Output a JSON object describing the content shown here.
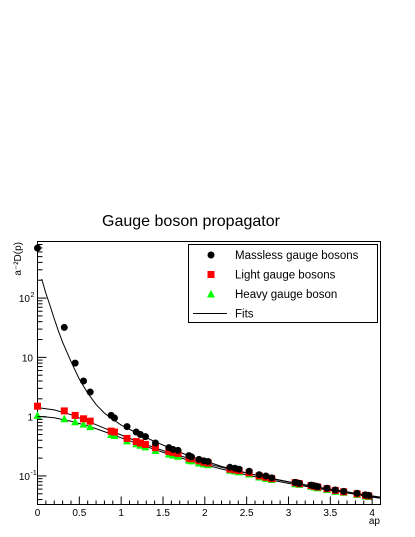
{
  "chart_data": {
    "type": "scatter",
    "title": "Gauge boson propagator",
    "xlabel": "ap",
    "ylabel": "a⁻²D(p)",
    "xlim": [
      0,
      4.1
    ],
    "ylim": [
      0.033,
      900
    ],
    "yscale": "log",
    "grid": false,
    "legend_position": "top-right",
    "x_ticks": [
      0,
      0.5,
      1,
      1.5,
      2,
      2.5,
      3,
      3.5,
      4
    ],
    "x_tick_labels": [
      "0",
      "0.5",
      "1",
      "1.5",
      "2",
      "2.5",
      "3",
      "3.5",
      "4"
    ],
    "y_ticks": [
      0.1,
      1,
      10,
      100
    ],
    "series": [
      {
        "name": "Massless gauge bosons",
        "marker": "circle",
        "color": "#000000",
        "x": [
          0,
          0.32,
          0.45,
          0.55,
          0.63,
          0.88,
          0.92,
          1.07,
          1.18,
          1.23,
          1.29,
          1.41,
          1.57,
          1.62,
          1.68,
          1.81,
          1.84,
          1.93,
          1.99,
          2.04,
          2.3,
          2.36,
          2.41,
          2.53,
          2.65,
          2.73,
          2.8,
          3.08,
          3.13,
          3.27,
          3.31,
          3.35,
          3.46,
          3.56,
          3.66,
          3.82,
          3.92,
          3.96
        ],
        "y": [
          700,
          32,
          8,
          4,
          2.6,
          1.05,
          0.95,
          0.68,
          0.55,
          0.5,
          0.46,
          0.36,
          0.3,
          0.28,
          0.27,
          0.22,
          0.21,
          0.19,
          0.18,
          0.175,
          0.14,
          0.135,
          0.13,
          0.12,
          0.105,
          0.1,
          0.093,
          0.078,
          0.075,
          0.07,
          0.068,
          0.066,
          0.062,
          0.058,
          0.055,
          0.051,
          0.048,
          0.047
        ]
      },
      {
        "name": "Light gauge bosons",
        "marker": "square",
        "color": "#ff0000",
        "x": [
          0,
          0.32,
          0.45,
          0.55,
          0.63,
          0.88,
          0.92,
          1.07,
          1.18,
          1.23,
          1.29,
          1.41,
          1.57,
          1.62,
          1.68,
          1.81,
          1.84,
          1.93,
          1.99,
          2.04,
          2.3,
          2.36,
          2.41,
          2.53,
          2.65,
          2.73,
          2.8,
          3.08,
          3.13,
          3.27,
          3.31,
          3.35,
          3.46,
          3.56,
          3.66,
          3.82,
          3.92,
          3.96
        ],
        "y": [
          1.5,
          1.25,
          1.05,
          0.92,
          0.84,
          0.57,
          0.55,
          0.43,
          0.38,
          0.36,
          0.34,
          0.3,
          0.26,
          0.25,
          0.24,
          0.2,
          0.195,
          0.18,
          0.17,
          0.165,
          0.13,
          0.127,
          0.123,
          0.113,
          0.1,
          0.095,
          0.09,
          0.077,
          0.074,
          0.069,
          0.067,
          0.065,
          0.061,
          0.057,
          0.054,
          0.05,
          0.047,
          0.046
        ]
      },
      {
        "name": "Heavy gauge boson",
        "marker": "triangle",
        "color": "#00ff00",
        "x": [
          0,
          0.32,
          0.45,
          0.55,
          0.63,
          0.88,
          0.92,
          1.07,
          1.18,
          1.23,
          1.29,
          1.41,
          1.57,
          1.62,
          1.68,
          1.81,
          1.84,
          1.93,
          1.99,
          2.04,
          2.3,
          2.36,
          2.41,
          2.53,
          2.65,
          2.73,
          2.8,
          3.08,
          3.13,
          3.27,
          3.31,
          3.35,
          3.46,
          3.56,
          3.66,
          3.82,
          3.92,
          3.96
        ],
        "y": [
          1.05,
          0.92,
          0.82,
          0.75,
          0.68,
          0.5,
          0.48,
          0.39,
          0.35,
          0.33,
          0.31,
          0.27,
          0.235,
          0.225,
          0.215,
          0.185,
          0.18,
          0.165,
          0.16,
          0.155,
          0.125,
          0.121,
          0.117,
          0.108,
          0.096,
          0.091,
          0.087,
          0.074,
          0.072,
          0.067,
          0.065,
          0.063,
          0.059,
          0.055,
          0.053,
          0.049,
          0.046,
          0.045
        ]
      }
    ],
    "fits": {
      "name": "Fits",
      "color": "#000000",
      "curves": [
        {
          "x": [
            0.05,
            0.1,
            0.15,
            0.2,
            0.25,
            0.3,
            0.4,
            0.5,
            0.6,
            0.7,
            0.8,
            0.9,
            1.0,
            1.2,
            1.4,
            1.6,
            1.8,
            2.0,
            2.2,
            2.4,
            2.6,
            2.8,
            3.0,
            3.2,
            3.4,
            3.6,
            3.8,
            4.0,
            4.1
          ],
          "y": [
            210,
            120,
            75,
            45,
            28,
            18,
            8.5,
            4.3,
            2.5,
            1.6,
            1.15,
            0.9,
            0.72,
            0.52,
            0.38,
            0.29,
            0.22,
            0.18,
            0.145,
            0.122,
            0.104,
            0.09,
            0.079,
            0.07,
            0.062,
            0.056,
            0.05,
            0.045,
            0.043
          ]
        },
        {
          "x": [
            0,
            0.2,
            0.4,
            0.6,
            0.8,
            1.0,
            1.2,
            1.4,
            1.6,
            1.8,
            2.0,
            2.2,
            2.4,
            2.6,
            2.8,
            3.0,
            3.2,
            3.4,
            3.6,
            3.8,
            4.0,
            4.1
          ],
          "y": [
            1.42,
            1.3,
            1.08,
            0.84,
            0.64,
            0.49,
            0.38,
            0.3,
            0.24,
            0.2,
            0.166,
            0.14,
            0.12,
            0.104,
            0.091,
            0.08,
            0.071,
            0.063,
            0.057,
            0.051,
            0.046,
            0.044
          ]
        },
        {
          "x": [
            0,
            0.2,
            0.4,
            0.6,
            0.8,
            1.0,
            1.2,
            1.4,
            1.6,
            1.8,
            2.0,
            2.2,
            2.4,
            2.6,
            2.8,
            3.0,
            3.2,
            3.4,
            3.6,
            3.8,
            4.0,
            4.1
          ],
          "y": [
            1.02,
            0.96,
            0.84,
            0.7,
            0.56,
            0.44,
            0.35,
            0.28,
            0.225,
            0.185,
            0.155,
            0.131,
            0.112,
            0.097,
            0.085,
            0.075,
            0.067,
            0.06,
            0.054,
            0.049,
            0.044,
            0.042
          ]
        }
      ]
    }
  }
}
